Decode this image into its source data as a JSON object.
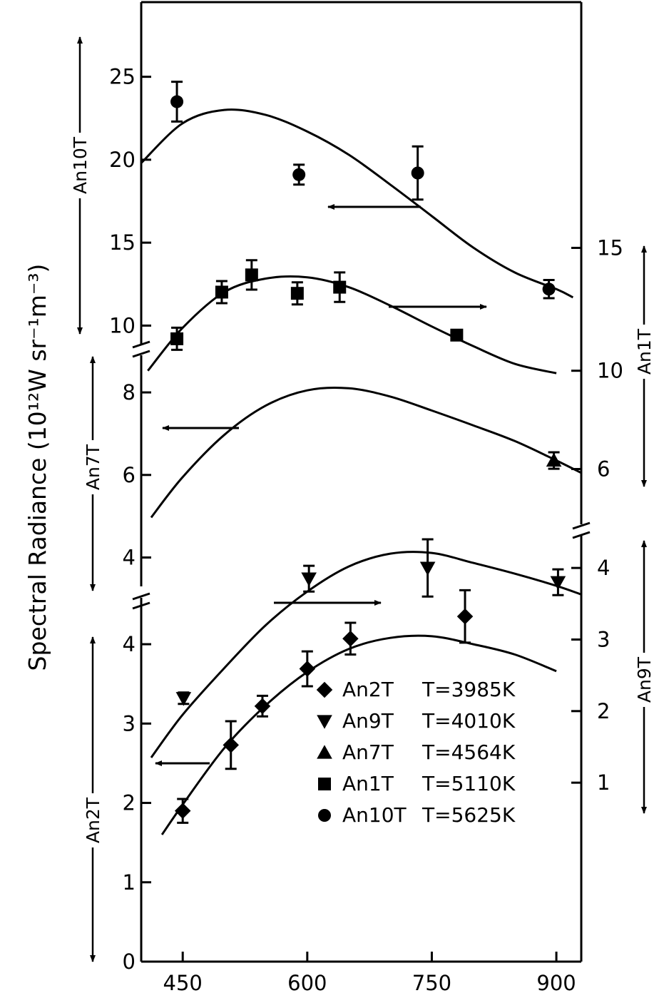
{
  "chart_data": {
    "type": "scatter",
    "title": "",
    "xlabel": "",
    "ylabel": "Spectral Radiance (10¹²W sr⁻¹m⁻³)",
    "xlim": [
      400,
      930
    ],
    "x_ticks": [
      "450",
      "600",
      "750",
      "900"
    ],
    "grid": false,
    "legend_position": "bottom-right",
    "panels": [
      {
        "key": "an10t",
        "axis_side": "left",
        "axis_label": "An10T",
        "ylim": [
          8.9,
          29.5
        ],
        "ticks": [
          "10",
          "15",
          "20",
          "25"
        ],
        "tick_values": [
          10,
          15,
          20,
          25
        ]
      },
      {
        "key": "an1t",
        "axis_side": "right",
        "axis_label": "An1T",
        "ylim": [
          3.75,
          25
        ],
        "ticks": [
          "6",
          "10",
          "15"
        ],
        "tick_values": [
          6,
          10,
          15
        ]
      },
      {
        "key": "an7t",
        "axis_side": "left",
        "axis_label": "An7T",
        "ylim": [
          3.3,
          8.9
        ],
        "ticks": [
          "4",
          "6",
          "8"
        ],
        "tick_values": [
          4,
          6,
          8
        ]
      },
      {
        "key": "an9t",
        "axis_side": "right",
        "axis_label": "An9T",
        "ylim": [
          -1.5,
          4.45
        ],
        "ticks": [
          "1",
          "2",
          "3",
          "4"
        ],
        "tick_values": [
          1,
          2,
          3,
          4
        ]
      },
      {
        "key": "an2t",
        "axis_side": "left",
        "axis_label": "An2T",
        "ylim": [
          0,
          4.45
        ],
        "ticks": [
          "0",
          "1",
          "2",
          "3",
          "4"
        ],
        "tick_values": [
          0,
          1,
          2,
          3,
          4
        ]
      }
    ],
    "series": [
      {
        "name": "An2T",
        "temperature": "T=3985K",
        "marker": "diamond",
        "axis": "an2t",
        "points": [
          {
            "x": 450,
            "y": 1.9,
            "err": 0.15
          },
          {
            "x": 508,
            "y": 2.73,
            "err": 0.3
          },
          {
            "x": 546,
            "y": 3.22,
            "err": 0.13
          },
          {
            "x": 600,
            "y": 3.69,
            "err": 0.22
          },
          {
            "x": 652,
            "y": 4.07,
            "err": 0.2
          },
          {
            "x": 790,
            "y": 4.35,
            "err": 0.33
          }
        ],
        "curve": {
          "x": [
            425,
            450,
            500,
            550,
            600,
            650,
            700,
            750,
            800,
            850,
            900
          ],
          "y": [
            1.6,
            1.98,
            2.69,
            3.23,
            3.65,
            3.94,
            4.08,
            4.1,
            4.0,
            3.87,
            3.66
          ]
        }
      },
      {
        "name": "An9T",
        "temperature": "T=4010K",
        "marker": "triangle-down",
        "axis": "an9t",
        "points": [
          {
            "x": 451,
            "y": 2.18,
            "err": 0.08
          },
          {
            "x": 602,
            "y": 3.85,
            "err": 0.18
          },
          {
            "x": 745,
            "y": 4.0,
            "err": 0.4
          },
          {
            "x": 902,
            "y": 3.8,
            "err": 0.18
          }
        ],
        "curve": {
          "x": [
            412,
            450,
            500,
            550,
            600,
            650,
            700,
            750,
            800,
            850,
            900,
            930
          ],
          "y": [
            1.35,
            1.95,
            2.6,
            3.2,
            3.67,
            4.02,
            4.2,
            4.21,
            4.07,
            3.92,
            3.75,
            3.63
          ]
        }
      },
      {
        "name": "An7T",
        "temperature": "T=4564K",
        "marker": "triangle-up",
        "axis": "an7t",
        "points": [
          {
            "x": 897,
            "y": 6.35,
            "err": 0.2
          }
        ],
        "curve": {
          "x": [
            412,
            450,
            500,
            550,
            600,
            650,
            700,
            750,
            800,
            850,
            900,
            930
          ],
          "y": [
            4.97,
            5.95,
            6.97,
            7.68,
            8.05,
            8.1,
            7.9,
            7.56,
            7.2,
            6.82,
            6.35,
            6.05
          ]
        }
      },
      {
        "name": "An1T",
        "temperature": "T=5110K",
        "marker": "square",
        "axis": "an1t",
        "points": [
          {
            "x": 443,
            "y": 11.3,
            "err": 0.45
          },
          {
            "x": 497,
            "y": 13.2,
            "err": 0.45
          },
          {
            "x": 533,
            "y": 13.9,
            "err": 0.6
          },
          {
            "x": 588,
            "y": 13.15,
            "err": 0.45
          },
          {
            "x": 639,
            "y": 13.4,
            "err": 0.6
          },
          {
            "x": 780,
            "y": 11.45,
            "err": 0.2
          }
        ],
        "curve": {
          "x": [
            408,
            450,
            500,
            550,
            600,
            650,
            700,
            750,
            800,
            850,
            900
          ],
          "y": [
            10.0,
            11.75,
            13.2,
            13.75,
            13.8,
            13.4,
            12.65,
            11.8,
            11.0,
            10.28,
            9.9
          ]
        }
      },
      {
        "name": "An10T",
        "temperature": "T=5625K",
        "marker": "circle",
        "axis": "an10t",
        "points": [
          {
            "x": 443,
            "y": 23.5,
            "err": 1.2
          },
          {
            "x": 590,
            "y": 19.1,
            "err": 0.6
          },
          {
            "x": 733,
            "y": 19.2,
            "err": 1.6
          },
          {
            "x": 891,
            "y": 12.2,
            "err": 0.55
          }
        ],
        "curve": {
          "x": [
            400,
            450,
            500,
            550,
            600,
            650,
            700,
            750,
            800,
            850,
            900,
            920
          ],
          "y": [
            19.8,
            22.2,
            23.0,
            22.7,
            21.7,
            20.3,
            18.5,
            16.6,
            14.7,
            13.2,
            12.2,
            11.7
          ]
        }
      }
    ],
    "annotations": [
      {
        "curve": "An10T",
        "direction": "left"
      },
      {
        "curve": "An1T",
        "direction": "right"
      },
      {
        "curve": "An7T",
        "direction": "left"
      },
      {
        "curve": "An9T",
        "direction": "right"
      },
      {
        "curve": "An2T",
        "direction": "left"
      }
    ]
  }
}
